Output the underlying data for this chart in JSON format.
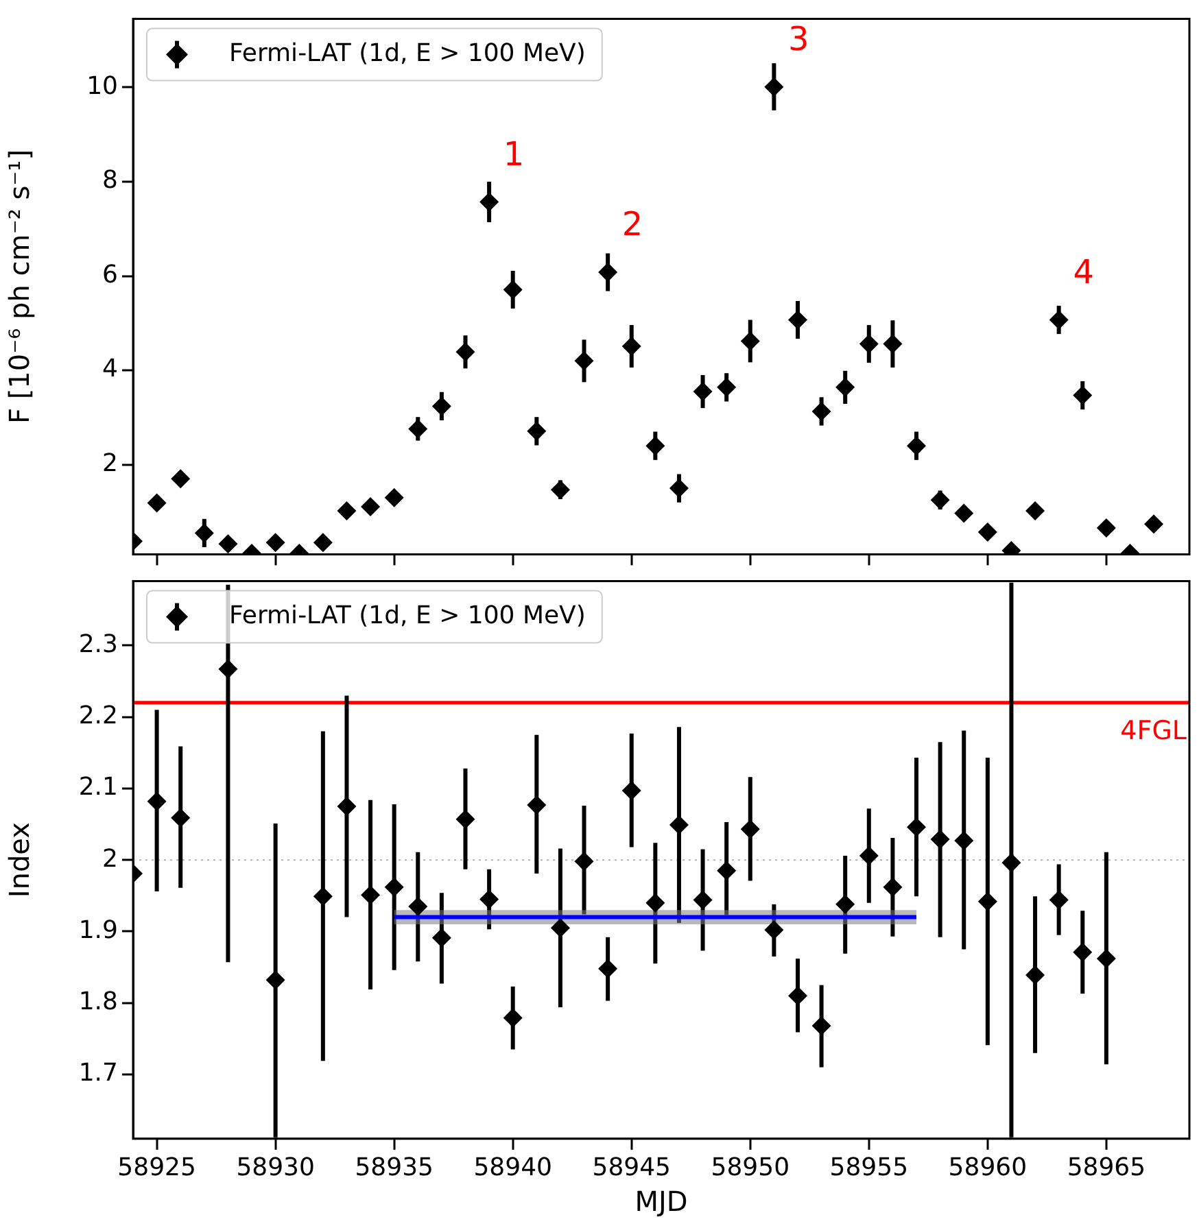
{
  "chart_data": [
    {
      "type": "scatter",
      "ylabel": "F [10⁻⁶ ph cm⁻² s⁻¹]",
      "x": [
        58924,
        58925,
        58926,
        58927,
        58928,
        58929,
        58930,
        58931,
        58932,
        58933,
        58934,
        58935,
        58936,
        58937,
        58938,
        58939,
        58940,
        58941,
        58942,
        58943,
        58944,
        58945,
        58946,
        58947,
        58948,
        58949,
        58950,
        58951,
        58952,
        58953,
        58954,
        58955,
        58956,
        58957,
        58958,
        58959,
        58960,
        58961,
        58962,
        58963,
        58964,
        58965,
        58966,
        58967
      ],
      "xlim": [
        58924,
        58968.5
      ],
      "xticks": [
        58925,
        58930,
        58935,
        58940,
        58945,
        58950,
        58955,
        58960,
        58965
      ],
      "ylim": [
        0.1,
        11.45
      ],
      "yticks": [
        2,
        4,
        6,
        8,
        10
      ],
      "tick_labels": "y",
      "legend": "top left",
      "marker": "diamond",
      "series": [
        {
          "name": "Fermi-LAT (1d, E > 100 MeV)",
          "color": "#000000",
          "values": [
            0.38,
            1.19,
            1.7,
            0.55,
            0.32,
            0.12,
            0.35,
            0.12,
            0.35,
            1.02,
            1.11,
            1.3,
            2.76,
            3.24,
            4.39,
            7.57,
            5.71,
            2.71,
            1.47,
            4.2,
            6.08,
            4.51,
            2.4,
            1.5,
            3.55,
            3.64,
            4.62,
            10.01,
            5.07,
            3.13,
            3.64,
            4.56,
            4.56,
            2.4,
            1.25,
            0.97,
            0.57,
            0.18,
            1.02,
            5.07,
            3.47,
            0.66,
            0.12,
            0.74
          ],
          "errors": [
            null,
            null,
            0.12,
            0.3,
            null,
            null,
            null,
            null,
            null,
            null,
            null,
            null,
            0.25,
            0.3,
            0.35,
            0.43,
            0.4,
            0.3,
            0.2,
            0.45,
            0.4,
            0.45,
            0.3,
            0.3,
            0.35,
            0.3,
            0.45,
            0.5,
            0.4,
            0.3,
            0.35,
            0.4,
            0.5,
            0.3,
            0.2,
            null,
            null,
            null,
            null,
            0.3,
            0.3,
            null,
            null,
            0.15
          ]
        }
      ],
      "annotations": [
        {
          "text": "1",
          "x": 58939,
          "y": 7.57
        },
        {
          "text": "2",
          "x": 58944,
          "y": 6.08
        },
        {
          "text": "3",
          "x": 58951,
          "y": 10.01
        },
        {
          "text": "4",
          "x": 58963,
          "y": 5.07
        }
      ]
    },
    {
      "type": "scatter",
      "xlabel": "MJD",
      "ylabel": "Index",
      "x": [
        58924,
        58925,
        58926,
        58927,
        58928,
        58929,
        58930,
        58931,
        58932,
        58933,
        58934,
        58935,
        58936,
        58937,
        58938,
        58939,
        58940,
        58941,
        58942,
        58943,
        58944,
        58945,
        58946,
        58947,
        58948,
        58949,
        58950,
        58951,
        58952,
        58953,
        58954,
        58955,
        58956,
        58957,
        58958,
        58959,
        58960,
        58961,
        58962,
        58963,
        58964,
        58965
      ],
      "xlim": [
        58924,
        58968.5
      ],
      "xticks": [
        58925,
        58930,
        58935,
        58940,
        58945,
        58950,
        58955,
        58960,
        58965
      ],
      "ylim": [
        1.61,
        2.39
      ],
      "yticks": [
        1.7,
        1.8,
        1.9,
        2.0,
        2.1,
        2.2,
        2.3
      ],
      "legend": "top left",
      "series": [
        {
          "name": "Fermi-LAT (1d, E > 100 MeV)",
          "color": "#000000",
          "marker": "diamond",
          "values": [
            1.981,
            2.082,
            2.059,
            null,
            2.267,
            null,
            1.832,
            null,
            1.949,
            2.075,
            1.951,
            1.962,
            1.935,
            1.891,
            2.057,
            1.945,
            1.779,
            2.077,
            1.905,
            1.998,
            1.848,
            2.097,
            1.94,
            2.049,
            1.944,
            1.985,
            2.043,
            1.902,
            1.81,
            1.768,
            1.938,
            2.006,
            1.962,
            2.046,
            2.029,
            2.027,
            1.942,
            1.996,
            1.839,
            1.944,
            1.871,
            1.862
          ],
          "errors": [
            null,
            [
              1.956,
              2.21
            ],
            [
              1.961,
              2.159
            ],
            null,
            [
              1.857,
              2.385
            ],
            null,
            [
              1.612,
              2.051
            ],
            null,
            [
              1.719,
              2.18
            ],
            [
              1.92,
              2.23
            ],
            [
              1.819,
              2.084
            ],
            [
              1.846,
              2.078
            ],
            [
              1.858,
              2.011
            ],
            [
              1.827,
              1.954
            ],
            [
              1.987,
              2.128
            ],
            [
              1.903,
              1.987
            ],
            [
              1.735,
              1.823
            ],
            [
              1.981,
              2.175
            ],
            [
              1.794,
              2.016
            ],
            [
              1.924,
              2.076
            ],
            [
              1.803,
              1.892
            ],
            [
              2.018,
              2.177
            ],
            [
              1.855,
              2.024
            ],
            [
              1.912,
              2.186
            ],
            [
              1.873,
              2.015
            ],
            [
              1.923,
              2.053
            ],
            [
              1.971,
              2.116
            ],
            [
              1.865,
              1.938
            ],
            [
              1.759,
              1.862
            ],
            [
              1.71,
              1.825
            ],
            [
              1.869,
              2.006
            ],
            [
              1.94,
              2.072
            ],
            [
              1.893,
              2.031
            ],
            [
              1.949,
              2.143
            ],
            [
              1.892,
              2.165
            ],
            [
              1.875,
              2.181
            ],
            [
              1.741,
              2.143
            ],
            [
              1.612,
              2.388
            ],
            [
              1.73,
              1.949
            ],
            [
              1.895,
              1.994
            ],
            [
              1.813,
              1.929
            ],
            [
              1.714,
              2.011
            ]
          ]
        },
        {
          "type": "line",
          "color": "#0000ff",
          "marker": "none",
          "x": [
            58935,
            58957
          ],
          "values": [
            1.92,
            1.92
          ],
          "lower": [
            1.91,
            1.91
          ],
          "upper": [
            1.93,
            1.93
          ]
        }
      ],
      "ref_lines": [
        {
          "axis": "y",
          "value": 2.22,
          "label": "4FGL",
          "color": "#ff0000"
        },
        {
          "axis": "y",
          "value": 2.0,
          "color": "#b0b0b0",
          "line_style": "dotted"
        }
      ]
    }
  ]
}
